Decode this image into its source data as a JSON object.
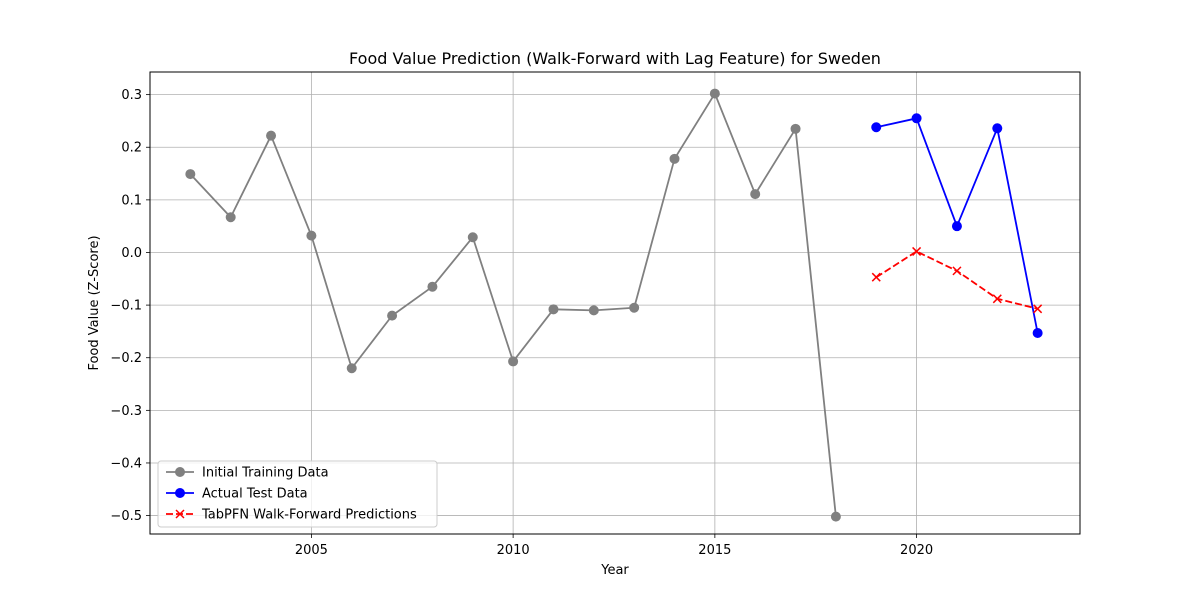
{
  "chart_data": {
    "type": "line",
    "title": "Food Value Prediction (Walk-Forward with Lag Feature) for Sweden",
    "xlabel": "Year",
    "ylabel": "Food Value (Z-Score)",
    "xlim": [
      2001.0,
      2024.05
    ],
    "ylim": [
      -0.535,
      0.343
    ],
    "x_ticks": [
      2005,
      2010,
      2015,
      2020
    ],
    "y_ticks": [
      -0.5,
      -0.4,
      -0.3,
      -0.2,
      -0.1,
      0.0,
      0.1,
      0.2,
      0.3
    ],
    "x_tick_labels": [
      "2005",
      "2010",
      "2015",
      "2020"
    ],
    "y_tick_labels": [
      "−0.5",
      "−0.4",
      "−0.3",
      "−0.2",
      "−0.1",
      "0.0",
      "0.1",
      "0.2",
      "0.3"
    ],
    "grid": true,
    "legend_position": "lower-left",
    "series": [
      {
        "name": "Initial Training Data",
        "color": "#808080",
        "marker": "circle",
        "line_style": "solid",
        "x": [
          2002,
          2003,
          2004,
          2005,
          2006,
          2007,
          2008,
          2009,
          2010,
          2011,
          2012,
          2013,
          2014,
          2015,
          2016,
          2017,
          2018
        ],
        "y": [
          0.149,
          0.067,
          0.222,
          0.032,
          -0.22,
          -0.12,
          -0.065,
          0.029,
          -0.207,
          -0.108,
          -0.11,
          -0.105,
          0.178,
          0.302,
          0.111,
          0.235,
          -0.502
        ]
      },
      {
        "name": "Actual Test Data",
        "color": "#0000ff",
        "marker": "circle",
        "line_style": "solid",
        "x": [
          2019,
          2020,
          2021,
          2022,
          2023
        ],
        "y": [
          0.238,
          0.255,
          0.05,
          0.236,
          -0.153
        ]
      },
      {
        "name": "TabPFN Walk-Forward Predictions",
        "color": "#ff0000",
        "marker": "x",
        "line_style": "dashed",
        "x": [
          2019,
          2020,
          2021,
          2022,
          2023
        ],
        "y": [
          -0.047,
          0.002,
          -0.035,
          -0.088,
          -0.107
        ]
      }
    ]
  }
}
